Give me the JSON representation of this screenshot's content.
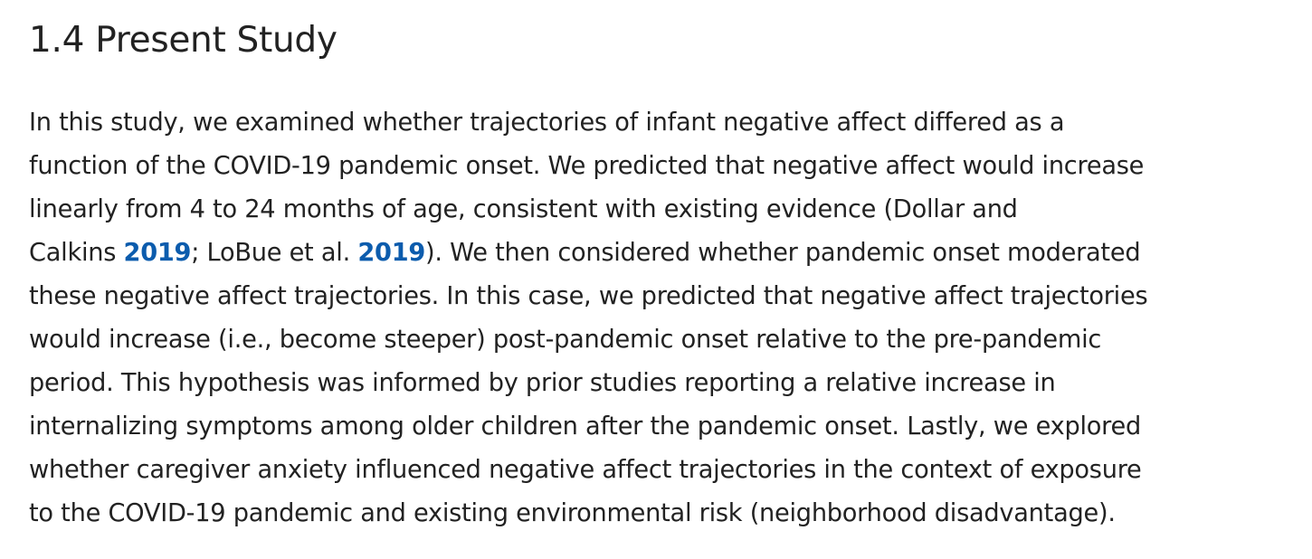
{
  "section": {
    "heading": "1.4 Present Study",
    "lines": [
      "In this study, we examined whether trajectories of infant negative affect differed as a",
      "function of the COVID-19 pandemic onset. We predicted that negative affect would increase",
      "linearly from 4 to 24 months of age, consistent with existing evidence (Dollar and",
      {
        "pre": "Calkins ",
        "cite1": "2019",
        "mid": "; LoBue et al. ",
        "cite2": "2019",
        "post": "). We then considered whether pandemic onset moderated"
      },
      "these negative affect trajectories. In this case, we predicted that negative affect trajectories",
      "would increase (i.e., become steeper) post-pandemic onset relative to the pre-pandemic",
      "period. This hypothesis was informed by prior studies reporting a relative increase in",
      "internalizing symptoms among older children after the pandemic onset. Lastly, we explored",
      "whether caregiver anxiety influenced negative affect trajectories in the context of exposure",
      "to the COVID-19 pandemic and existing environmental risk (neighborhood disadvantage)."
    ]
  },
  "colors": {
    "text": "#222222",
    "link": "#0c5cad"
  }
}
